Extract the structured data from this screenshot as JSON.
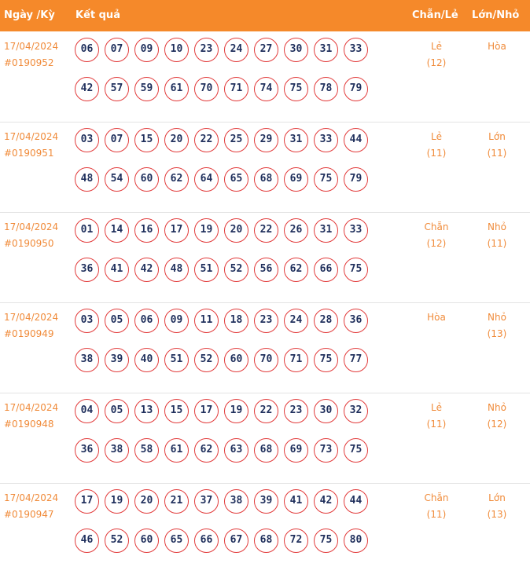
{
  "header": {
    "date": "Ngày /Kỳ",
    "result": "Kết quả",
    "even_odd": "Chẵn/Lẻ",
    "big_small": "Lớn/Nhỏ"
  },
  "colors": {
    "header_bg": "#f5892a",
    "accent_text": "#f08b3a",
    "ball_border": "#e23a3a",
    "ball_text": "#1f2f5c"
  },
  "draws": [
    {
      "date": "17/04/2024",
      "id": "#0190952",
      "numbers": [
        "06",
        "07",
        "09",
        "10",
        "23",
        "24",
        "27",
        "30",
        "31",
        "33",
        "42",
        "57",
        "59",
        "61",
        "70",
        "71",
        "74",
        "75",
        "78",
        "79"
      ],
      "even_odd": "Lẻ",
      "even_odd_count": "(12)",
      "big_small": "Hòa",
      "big_small_count": ""
    },
    {
      "date": "17/04/2024",
      "id": "#0190951",
      "numbers": [
        "03",
        "07",
        "15",
        "20",
        "22",
        "25",
        "29",
        "31",
        "33",
        "44",
        "48",
        "54",
        "60",
        "62",
        "64",
        "65",
        "68",
        "69",
        "75",
        "79"
      ],
      "even_odd": "Lẻ",
      "even_odd_count": "(11)",
      "big_small": "Lớn",
      "big_small_count": "(11)"
    },
    {
      "date": "17/04/2024",
      "id": "#0190950",
      "numbers": [
        "01",
        "14",
        "16",
        "17",
        "19",
        "20",
        "22",
        "26",
        "31",
        "33",
        "36",
        "41",
        "42",
        "48",
        "51",
        "52",
        "56",
        "62",
        "66",
        "75"
      ],
      "even_odd": "Chẵn",
      "even_odd_count": "(12)",
      "big_small": "Nhỏ",
      "big_small_count": "(11)"
    },
    {
      "date": "17/04/2024",
      "id": "#0190949",
      "numbers": [
        "03",
        "05",
        "06",
        "09",
        "11",
        "18",
        "23",
        "24",
        "28",
        "36",
        "38",
        "39",
        "40",
        "51",
        "52",
        "60",
        "70",
        "71",
        "75",
        "77"
      ],
      "even_odd": "Hòa",
      "even_odd_count": "",
      "big_small": "Nhỏ",
      "big_small_count": "(13)"
    },
    {
      "date": "17/04/2024",
      "id": "#0190948",
      "numbers": [
        "04",
        "05",
        "13",
        "15",
        "17",
        "19",
        "22",
        "23",
        "30",
        "32",
        "36",
        "38",
        "58",
        "61",
        "62",
        "63",
        "68",
        "69",
        "73",
        "75"
      ],
      "even_odd": "Lẻ",
      "even_odd_count": "(11)",
      "big_small": "Nhỏ",
      "big_small_count": "(12)"
    },
    {
      "date": "17/04/2024",
      "id": "#0190947",
      "numbers": [
        "17",
        "19",
        "20",
        "21",
        "37",
        "38",
        "39",
        "41",
        "42",
        "44",
        "46",
        "52",
        "60",
        "65",
        "66",
        "67",
        "68",
        "72",
        "75",
        "80"
      ],
      "even_odd": "Chẵn",
      "even_odd_count": "(11)",
      "big_small": "Lớn",
      "big_small_count": "(13)"
    }
  ]
}
